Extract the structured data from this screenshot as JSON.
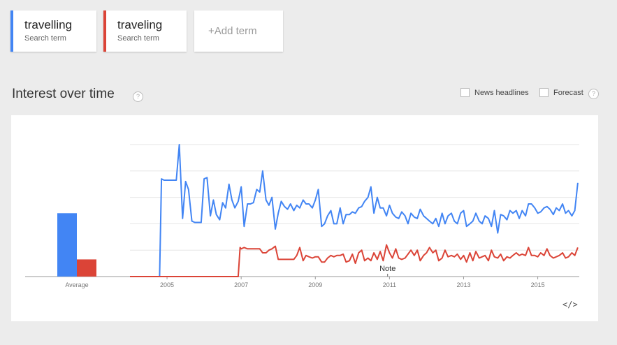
{
  "terms": [
    {
      "name": "travelling",
      "subtitle": "Search term",
      "color": "#4285f4"
    },
    {
      "name": "traveling",
      "subtitle": "Search term",
      "color": "#db4437"
    }
  ],
  "add_term_label": "+Add term",
  "section": {
    "title": "Interest over time",
    "help_label": "?",
    "news_headlines_label": "News headlines",
    "forecast_label": "Forecast",
    "forecast_help_label": "?"
  },
  "embed_label": "</>",
  "chart_data": {
    "type": "line",
    "average_label": "Average",
    "averages": [
      {
        "series": "travelling",
        "value": 48
      },
      {
        "series": "traveling",
        "value": 13
      }
    ],
    "x_ticks": [
      "2005",
      "2007",
      "2009",
      "2011",
      "2013",
      "2015"
    ],
    "ylim": [
      0,
      100
    ],
    "grid": true,
    "annotation": {
      "label": "Note",
      "x": 2010.95
    },
    "series": [
      {
        "name": "travelling",
        "color": "#4285f4",
        "points": [
          [
            2004.0,
            0
          ],
          [
            2004.8,
            0
          ],
          [
            2004.85,
            74
          ],
          [
            2004.92,
            73
          ],
          [
            2005.0,
            73
          ],
          [
            2005.08,
            73
          ],
          [
            2005.17,
            73
          ],
          [
            2005.25,
            73
          ],
          [
            2005.33,
            100
          ],
          [
            2005.42,
            44
          ],
          [
            2005.5,
            72
          ],
          [
            2005.58,
            66
          ],
          [
            2005.67,
            42
          ],
          [
            2005.75,
            41
          ],
          [
            2005.83,
            41
          ],
          [
            2005.92,
            41
          ],
          [
            2006.0,
            74
          ],
          [
            2006.08,
            75
          ],
          [
            2006.17,
            46
          ],
          [
            2006.25,
            58
          ],
          [
            2006.33,
            47
          ],
          [
            2006.42,
            43
          ],
          [
            2006.5,
            56
          ],
          [
            2006.58,
            52
          ],
          [
            2006.67,
            70
          ],
          [
            2006.75,
            58
          ],
          [
            2006.83,
            52
          ],
          [
            2006.92,
            57
          ],
          [
            2007.0,
            68
          ],
          [
            2007.08,
            38
          ],
          [
            2007.17,
            55
          ],
          [
            2007.25,
            55
          ],
          [
            2007.33,
            56
          ],
          [
            2007.42,
            66
          ],
          [
            2007.5,
            64
          ],
          [
            2007.58,
            80
          ],
          [
            2007.67,
            58
          ],
          [
            2007.75,
            54
          ],
          [
            2007.83,
            60
          ],
          [
            2007.92,
            36
          ],
          [
            2008.0,
            48
          ],
          [
            2008.08,
            57
          ],
          [
            2008.17,
            53
          ],
          [
            2008.25,
            51
          ],
          [
            2008.33,
            55
          ],
          [
            2008.42,
            50
          ],
          [
            2008.5,
            54
          ],
          [
            2008.58,
            52
          ],
          [
            2008.67,
            58
          ],
          [
            2008.75,
            55
          ],
          [
            2008.83,
            55
          ],
          [
            2008.92,
            52
          ],
          [
            2009.0,
            58
          ],
          [
            2009.08,
            66
          ],
          [
            2009.17,
            38
          ],
          [
            2009.25,
            40
          ],
          [
            2009.33,
            46
          ],
          [
            2009.42,
            50
          ],
          [
            2009.5,
            40
          ],
          [
            2009.58,
            40
          ],
          [
            2009.67,
            52
          ],
          [
            2009.75,
            40
          ],
          [
            2009.83,
            47
          ],
          [
            2009.92,
            47
          ],
          [
            2010.0,
            49
          ],
          [
            2010.08,
            48
          ],
          [
            2010.17,
            52
          ],
          [
            2010.25,
            53
          ],
          [
            2010.33,
            57
          ],
          [
            2010.42,
            60
          ],
          [
            2010.5,
            68
          ],
          [
            2010.58,
            48
          ],
          [
            2010.67,
            60
          ],
          [
            2010.75,
            52
          ],
          [
            2010.83,
            52
          ],
          [
            2010.92,
            46
          ],
          [
            2011.0,
            54
          ],
          [
            2011.08,
            48
          ],
          [
            2011.17,
            45
          ],
          [
            2011.25,
            44
          ],
          [
            2011.33,
            49
          ],
          [
            2011.42,
            46
          ],
          [
            2011.5,
            40
          ],
          [
            2011.58,
            48
          ],
          [
            2011.67,
            45
          ],
          [
            2011.75,
            44
          ],
          [
            2011.83,
            51
          ],
          [
            2011.92,
            46
          ],
          [
            2012.0,
            44
          ],
          [
            2012.08,
            42
          ],
          [
            2012.17,
            40
          ],
          [
            2012.25,
            44
          ],
          [
            2012.33,
            38
          ],
          [
            2012.42,
            48
          ],
          [
            2012.5,
            40
          ],
          [
            2012.58,
            46
          ],
          [
            2012.67,
            48
          ],
          [
            2012.75,
            42
          ],
          [
            2012.83,
            40
          ],
          [
            2012.92,
            48
          ],
          [
            2013.0,
            50
          ],
          [
            2013.08,
            38
          ],
          [
            2013.17,
            40
          ],
          [
            2013.25,
            42
          ],
          [
            2013.33,
            48
          ],
          [
            2013.42,
            42
          ],
          [
            2013.5,
            40
          ],
          [
            2013.58,
            46
          ],
          [
            2013.67,
            44
          ],
          [
            2013.75,
            38
          ],
          [
            2013.83,
            50
          ],
          [
            2013.92,
            33
          ],
          [
            2014.0,
            47
          ],
          [
            2014.08,
            46
          ],
          [
            2014.17,
            43
          ],
          [
            2014.25,
            50
          ],
          [
            2014.33,
            48
          ],
          [
            2014.42,
            50
          ],
          [
            2014.5,
            44
          ],
          [
            2014.58,
            50
          ],
          [
            2014.67,
            46
          ],
          [
            2014.75,
            55
          ],
          [
            2014.83,
            55
          ],
          [
            2014.92,
            52
          ],
          [
            2015.0,
            48
          ],
          [
            2015.08,
            49
          ],
          [
            2015.17,
            52
          ],
          [
            2015.25,
            53
          ],
          [
            2015.33,
            51
          ],
          [
            2015.42,
            47
          ],
          [
            2015.5,
            52
          ],
          [
            2015.58,
            50
          ],
          [
            2015.67,
            55
          ],
          [
            2015.75,
            48
          ],
          [
            2015.83,
            50
          ],
          [
            2015.92,
            46
          ],
          [
            2016.0,
            50
          ],
          [
            2016.08,
            71
          ]
        ]
      },
      {
        "name": "traveling",
        "color": "#db4437",
        "points": [
          [
            2004.0,
            0
          ],
          [
            2004.5,
            0
          ],
          [
            2005.0,
            0
          ],
          [
            2005.5,
            0
          ],
          [
            2006.0,
            0
          ],
          [
            2006.5,
            0
          ],
          [
            2006.92,
            0
          ],
          [
            2006.97,
            22
          ],
          [
            2007.0,
            21
          ],
          [
            2007.08,
            22
          ],
          [
            2007.17,
            21
          ],
          [
            2007.25,
            21
          ],
          [
            2007.33,
            21
          ],
          [
            2007.42,
            21
          ],
          [
            2007.5,
            21
          ],
          [
            2007.58,
            18
          ],
          [
            2007.67,
            18
          ],
          [
            2007.75,
            20
          ],
          [
            2007.83,
            21
          ],
          [
            2007.92,
            23
          ],
          [
            2008.0,
            13
          ],
          [
            2008.08,
            13
          ],
          [
            2008.17,
            13
          ],
          [
            2008.25,
            13
          ],
          [
            2008.33,
            13
          ],
          [
            2008.42,
            13
          ],
          [
            2008.5,
            16
          ],
          [
            2008.58,
            22
          ],
          [
            2008.67,
            12
          ],
          [
            2008.75,
            16
          ],
          [
            2008.83,
            15
          ],
          [
            2008.92,
            14
          ],
          [
            2009.0,
            15
          ],
          [
            2009.08,
            15
          ],
          [
            2009.17,
            11
          ],
          [
            2009.25,
            11
          ],
          [
            2009.33,
            14
          ],
          [
            2009.42,
            16
          ],
          [
            2009.5,
            15
          ],
          [
            2009.58,
            16
          ],
          [
            2009.67,
            16
          ],
          [
            2009.75,
            17
          ],
          [
            2009.83,
            11
          ],
          [
            2009.92,
            12
          ],
          [
            2010.0,
            17
          ],
          [
            2010.08,
            10
          ],
          [
            2010.17,
            18
          ],
          [
            2010.25,
            20
          ],
          [
            2010.33,
            12
          ],
          [
            2010.42,
            14
          ],
          [
            2010.5,
            12
          ],
          [
            2010.58,
            18
          ],
          [
            2010.67,
            13
          ],
          [
            2010.75,
            19
          ],
          [
            2010.83,
            12
          ],
          [
            2010.92,
            24
          ],
          [
            2011.0,
            18
          ],
          [
            2011.08,
            14
          ],
          [
            2011.17,
            21
          ],
          [
            2011.25,
            14
          ],
          [
            2011.33,
            13
          ],
          [
            2011.42,
            14
          ],
          [
            2011.5,
            17
          ],
          [
            2011.58,
            20
          ],
          [
            2011.67,
            16
          ],
          [
            2011.75,
            20
          ],
          [
            2011.83,
            12
          ],
          [
            2011.92,
            16
          ],
          [
            2012.0,
            18
          ],
          [
            2012.08,
            22
          ],
          [
            2012.17,
            18
          ],
          [
            2012.25,
            20
          ],
          [
            2012.33,
            12
          ],
          [
            2012.42,
            14
          ],
          [
            2012.5,
            20
          ],
          [
            2012.58,
            15
          ],
          [
            2012.67,
            16
          ],
          [
            2012.75,
            15
          ],
          [
            2012.83,
            17
          ],
          [
            2012.92,
            13
          ],
          [
            2013.0,
            16
          ],
          [
            2013.08,
            11
          ],
          [
            2013.17,
            18
          ],
          [
            2013.25,
            12
          ],
          [
            2013.33,
            19
          ],
          [
            2013.42,
            14
          ],
          [
            2013.5,
            15
          ],
          [
            2013.58,
            16
          ],
          [
            2013.67,
            12
          ],
          [
            2013.75,
            20
          ],
          [
            2013.83,
            15
          ],
          [
            2013.92,
            14
          ],
          [
            2014.0,
            17
          ],
          [
            2014.08,
            12
          ],
          [
            2014.17,
            15
          ],
          [
            2014.25,
            14
          ],
          [
            2014.33,
            16
          ],
          [
            2014.42,
            18
          ],
          [
            2014.5,
            16
          ],
          [
            2014.58,
            17
          ],
          [
            2014.67,
            16
          ],
          [
            2014.75,
            22
          ],
          [
            2014.83,
            16
          ],
          [
            2014.92,
            16
          ],
          [
            2015.0,
            15
          ],
          [
            2015.08,
            18
          ],
          [
            2015.17,
            16
          ],
          [
            2015.25,
            21
          ],
          [
            2015.33,
            16
          ],
          [
            2015.42,
            14
          ],
          [
            2015.5,
            15
          ],
          [
            2015.58,
            16
          ],
          [
            2015.67,
            18
          ],
          [
            2015.75,
            14
          ],
          [
            2015.83,
            15
          ],
          [
            2015.92,
            18
          ],
          [
            2016.0,
            16
          ],
          [
            2016.08,
            22
          ]
        ]
      }
    ]
  }
}
